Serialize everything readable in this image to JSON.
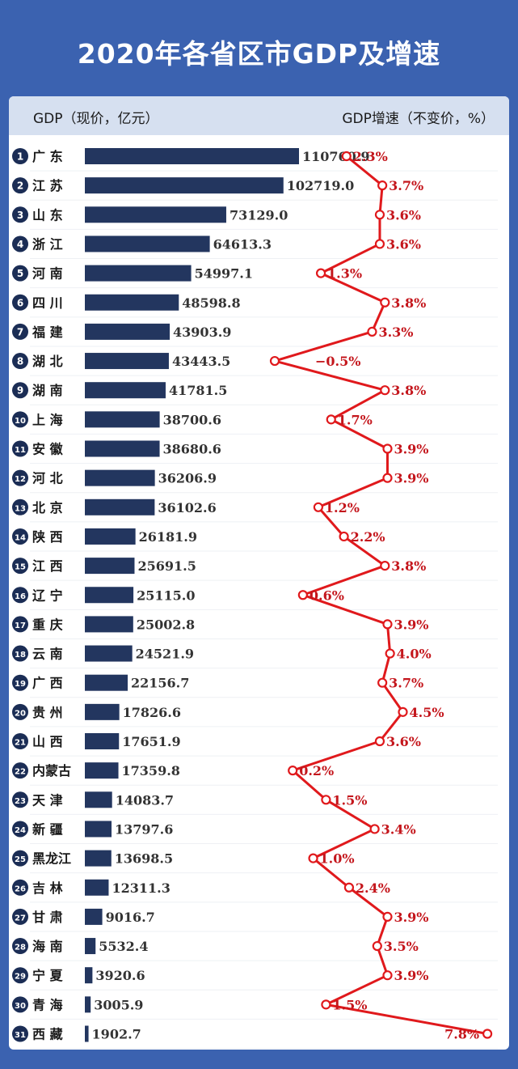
{
  "title": "2020年各省区市GDP及增速",
  "header": {
    "left": "GDP（现价，亿元）",
    "right": "GDP增速（不变价，%）"
  },
  "colors": {
    "background": "#3b62b0",
    "bar": "#23365f",
    "line": "#e0191c",
    "badge": "#1b2d55",
    "label_growth": "#c4161c"
  },
  "chart_data": [
    {
      "type": "bar",
      "orientation": "horizontal",
      "title": "",
      "series_label": "GDP（现价，亿元）",
      "categories": [
        "广 东",
        "江 苏",
        "山 东",
        "浙 江",
        "河 南",
        "四 川",
        "福 建",
        "湖 北",
        "湖 南",
        "上 海",
        "安 徽",
        "河 北",
        "北 京",
        "陕 西",
        "江 西",
        "辽 宁",
        "重 庆",
        "云 南",
        "广 西",
        "贵 州",
        "山 西",
        "内蒙古",
        "天 津",
        "新 疆",
        "黑龙江",
        "吉 林",
        "甘 肃",
        "海 南",
        "宁 夏",
        "青 海",
        "西 藏"
      ],
      "values": [
        110760.9,
        102719.0,
        73129.0,
        64613.3,
        54997.1,
        48598.8,
        43903.9,
        43443.5,
        41781.5,
        38700.6,
        38680.6,
        36206.9,
        36102.6,
        26181.9,
        25691.5,
        25115.0,
        25002.8,
        24521.9,
        22156.7,
        17826.6,
        17651.9,
        17359.8,
        14083.7,
        13797.6,
        13698.5,
        12311.3,
        9016.7,
        5532.4,
        3920.6,
        3005.9,
        1902.7
      ],
      "labels": [
        "110760.9",
        "102719.0",
        "73129.0",
        "64613.3",
        "54997.1",
        "48598.8",
        "43903.9",
        "43443.5",
        "41781.5",
        "38700.6",
        "38680.6",
        "36206.9",
        "36102.6",
        "26181.9",
        "25691.5",
        "25115.0",
        "25002.8",
        "24521.9",
        "22156.7",
        "17826.6",
        "17651.9",
        "17359.8",
        "14083.7",
        "13797.6",
        "13698.5",
        "12311.3",
        "9016.7",
        "5532.4",
        "3920.6",
        "3005.9",
        "1902.7"
      ],
      "ranks": [
        "1",
        "2",
        "3",
        "4",
        "5",
        "6",
        "7",
        "8",
        "9",
        "10",
        "11",
        "12",
        "13",
        "14",
        "15",
        "16",
        "17",
        "18",
        "19",
        "20",
        "21",
        "22",
        "23",
        "24",
        "25",
        "26",
        "27",
        "28",
        "29",
        "30",
        "31"
      ]
    },
    {
      "type": "line",
      "series_label": "GDP增速（不变价，%）",
      "values": [
        2.3,
        3.7,
        3.6,
        3.6,
        1.3,
        3.8,
        3.3,
        -0.5,
        3.8,
        1.7,
        3.9,
        3.9,
        1.2,
        2.2,
        3.8,
        0.6,
        3.9,
        4.0,
        3.7,
        4.5,
        3.6,
        0.2,
        1.5,
        3.4,
        1.0,
        2.4,
        3.9,
        3.5,
        3.9,
        1.5,
        7.8
      ],
      "labels": [
        "2.3%",
        "3.7%",
        "3.6%",
        "3.6%",
        "1.3%",
        "3.8%",
        "3.3%",
        "−0.5%",
        "3.8%",
        "1.7%",
        "3.9%",
        "3.9%",
        "1.2%",
        "2.2%",
        "3.8%",
        "0.6%",
        "3.9%",
        "4.0%",
        "3.7%",
        "4.5%",
        "3.6%",
        "0.2%",
        "1.5%",
        "3.4%",
        "1.0%",
        "2.4%",
        "3.9%",
        "3.5%",
        "3.9%",
        "1.5%",
        "7.8%"
      ]
    }
  ]
}
